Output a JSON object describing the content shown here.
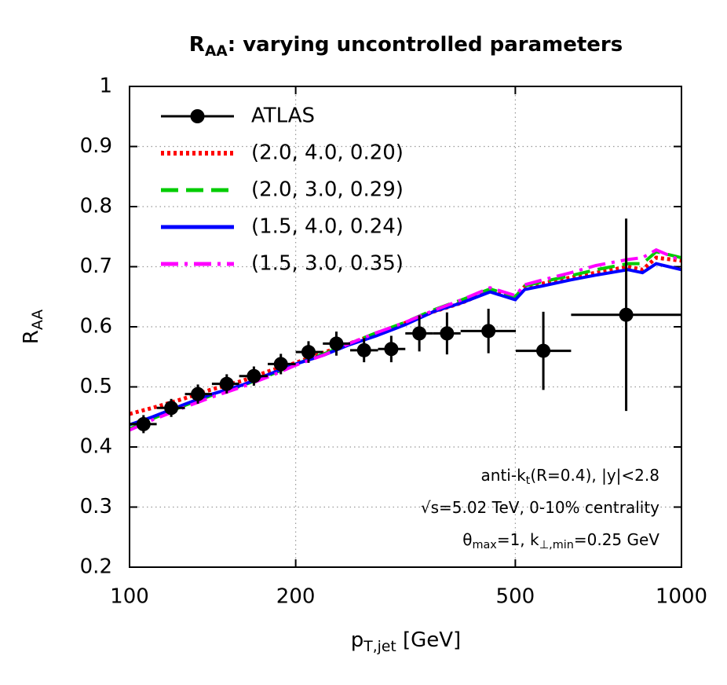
{
  "chart_data": {
    "type": "line",
    "title": [
      {
        "text": "R"
      },
      {
        "text": "AA",
        "sub": true
      },
      {
        "text": ": varying uncontrolled parameters"
      }
    ],
    "xlabel": [
      {
        "text": "p"
      },
      {
        "text": "T,jet",
        "sub": true
      },
      {
        "text": " [GeV]"
      }
    ],
    "ylabel": [
      {
        "text": "R"
      },
      {
        "text": "AA",
        "sub": true
      }
    ],
    "annotations": [
      [
        {
          "text": "anti-k"
        },
        {
          "text": "t",
          "sub": true
        },
        {
          "text": "(R=0.4), |y|<2.8"
        }
      ],
      [
        {
          "text": "√s=5.02 TeV, 0-10% centrality"
        }
      ],
      [
        {
          "text": "θ"
        },
        {
          "text": "max",
          "sub": true
        },
        {
          "text": "=1, k"
        },
        {
          "text": "⊥,min",
          "sub": true
        },
        {
          "text": "=0.25 GeV"
        }
      ]
    ],
    "xscale": "log",
    "xlim": [
      100,
      1000
    ],
    "ylim": [
      0.2,
      1
    ],
    "xticks": [
      100,
      200,
      500,
      1000
    ],
    "yticks": [
      0.2,
      0.3,
      0.4,
      0.5,
      0.6,
      0.7,
      0.8,
      0.9,
      1
    ],
    "grid": true,
    "legend": "upper left",
    "points": {
      "name": "ATLAS",
      "color": "#000000",
      "x": [
        106,
        119,
        133,
        150,
        168,
        188,
        211,
        237,
        266,
        298,
        335,
        376,
        447,
        562,
        794
      ],
      "x_low": [
        100,
        112,
        126,
        141,
        158,
        178,
        200,
        224,
        251,
        282,
        316,
        355,
        398,
        501,
        631
      ],
      "x_high": [
        112,
        126,
        141,
        158,
        178,
        200,
        224,
        251,
        282,
        316,
        355,
        398,
        501,
        631,
        1000
      ],
      "values": [
        0.438,
        0.465,
        0.488,
        0.505,
        0.518,
        0.538,
        0.558,
        0.572,
        0.561,
        0.563,
        0.589,
        0.589,
        0.593,
        0.56,
        0.62
      ],
      "y_err": [
        0.015,
        0.015,
        0.016,
        0.016,
        0.016,
        0.017,
        0.018,
        0.02,
        0.02,
        0.022,
        0.03,
        0.035,
        0.037,
        0.065,
        0.16
      ]
    },
    "x": [
      100,
      110,
      125,
      140,
      160,
      180,
      200,
      225,
      250,
      280,
      315,
      355,
      400,
      450,
      500,
      520,
      560,
      630,
      700,
      800,
      850,
      900,
      1000
    ],
    "series": [
      {
        "name": "(2.0, 4.0, 0.20)",
        "color": "#ff0000",
        "style": "dotted",
        "values": [
          0.455,
          0.465,
          0.48,
          0.495,
          0.51,
          0.527,
          0.54,
          0.557,
          0.572,
          0.588,
          0.606,
          0.625,
          0.64,
          0.66,
          0.648,
          0.667,
          0.672,
          0.682,
          0.69,
          0.7,
          0.695,
          0.715,
          0.71
        ]
      },
      {
        "name": "(2.0, 3.0, 0.29)",
        "color": "#00cc00",
        "style": "dashed",
        "values": [
          0.43,
          0.447,
          0.468,
          0.485,
          0.502,
          0.52,
          0.538,
          0.555,
          0.572,
          0.59,
          0.607,
          0.628,
          0.645,
          0.663,
          0.65,
          0.668,
          0.675,
          0.685,
          0.695,
          0.705,
          0.705,
          0.725,
          0.715
        ]
      },
      {
        "name": "(1.5, 4.0, 0.24)",
        "color": "#0000ff",
        "style": "solid",
        "values": [
          0.437,
          0.45,
          0.47,
          0.487,
          0.503,
          0.522,
          0.538,
          0.553,
          0.57,
          0.585,
          0.603,
          0.625,
          0.64,
          0.658,
          0.645,
          0.662,
          0.668,
          0.678,
          0.686,
          0.695,
          0.69,
          0.705,
          0.695
        ]
      },
      {
        "name": "(1.5, 3.0, 0.35)",
        "color": "#ff00ff",
        "style": "dashdot",
        "values": [
          0.428,
          0.445,
          0.465,
          0.482,
          0.5,
          0.518,
          0.536,
          0.553,
          0.572,
          0.59,
          0.607,
          0.627,
          0.645,
          0.665,
          0.652,
          0.67,
          0.678,
          0.69,
          0.702,
          0.712,
          0.715,
          0.728,
          0.71
        ]
      }
    ]
  }
}
